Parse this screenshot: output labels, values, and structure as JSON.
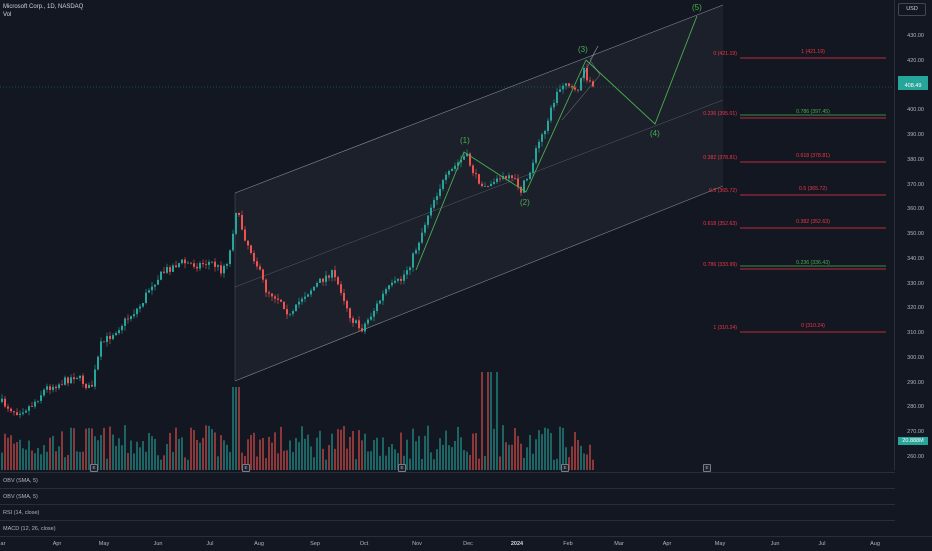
{
  "header": {
    "symbol_line": "Microsoft Corp., 1D, NASDAQ",
    "vol_label": "Vol"
  },
  "currency_button": "USD",
  "price_axis": {
    "labels": [
      "430.00",
      "420.00",
      "410.00",
      "400.00",
      "390.00",
      "380.00",
      "370.00",
      "360.00",
      "350.00",
      "340.00",
      "330.00",
      "320.00",
      "310.00",
      "300.00",
      "290.00",
      "280.00",
      "270.00",
      "260.00"
    ]
  },
  "current_price_tag": "408.49",
  "volume_tag": "20.888M",
  "time_axis": {
    "labels": [
      "ar",
      "Apr",
      "May",
      "Jun",
      "Jul",
      "Aug",
      "Sep",
      "Oct",
      "Nov",
      "Dec",
      "2024",
      "Feb",
      "Mar",
      "Apr",
      "May",
      "Jun",
      "Jul",
      "Aug"
    ]
  },
  "fib_left": [
    "0 (421.19)",
    "0.236 (395.01)",
    "0.382 (378.81)",
    "0.5 (365.72)",
    "0.618 (352.63)",
    "0.786 (333.99)",
    "1 (310.24)"
  ],
  "fib_right": [
    "1 (421.19)",
    "0.786 (397.45)",
    "0.618 (378.81)",
    "0.5 (365.72)",
    "0.382 (352.63)",
    "0.236 (336.43)",
    "0 (310.24)"
  ],
  "wave_labels": [
    "(1)",
    "(2)",
    "(3)",
    "(4)",
    "(5)"
  ],
  "event_badge": "E",
  "panels": [
    "OBV (SMA, 5)",
    "OBV (SMA, 5)",
    "RSI (14, close)",
    "MACD (12, 26, close)"
  ],
  "colors": {
    "up": "#26a69a",
    "down": "#ef5350",
    "wave": "#4caf50",
    "fib_line": "#f23645",
    "bg": "#131722",
    "channel": "#b2b5be"
  }
}
